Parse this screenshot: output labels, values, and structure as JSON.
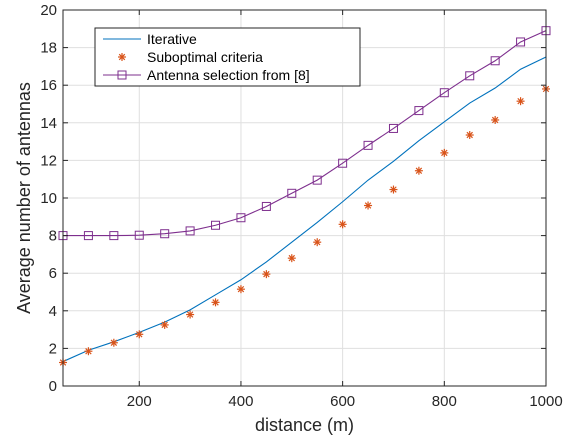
{
  "chart_data": {
    "type": "line",
    "xlabel": "distance (m)",
    "ylabel": "Average number of antennas",
    "xlim": [
      50,
      1000
    ],
    "ylim": [
      0,
      20
    ],
    "xticks": [
      200,
      400,
      600,
      800,
      1000
    ],
    "yticks": [
      0,
      2,
      4,
      6,
      8,
      10,
      12,
      14,
      16,
      18,
      20
    ],
    "grid": true,
    "legend_position": "top-left",
    "x": [
      50,
      100,
      150,
      200,
      250,
      300,
      350,
      400,
      450,
      500,
      550,
      600,
      650,
      700,
      750,
      800,
      850,
      900,
      950,
      1000
    ],
    "series": [
      {
        "name": "Iterative",
        "style": "line",
        "color": "#0072BD",
        "values": [
          1.3,
          1.9,
          2.35,
          2.85,
          3.4,
          4.05,
          4.85,
          5.65,
          6.6,
          7.65,
          8.7,
          9.8,
          10.95,
          11.95,
          13.05,
          14.05,
          15.05,
          15.85,
          16.85,
          17.5
        ]
      },
      {
        "name": "Suboptimal criteria",
        "style": "asterisk",
        "color": "#D95319",
        "values": [
          1.25,
          1.85,
          2.3,
          2.75,
          3.25,
          3.8,
          4.45,
          5.15,
          5.95,
          6.8,
          7.65,
          8.6,
          9.6,
          10.45,
          11.45,
          12.4,
          13.35,
          14.15,
          15.15,
          15.8
        ]
      },
      {
        "name": "Antenna selection from [8]",
        "style": "line-square",
        "color": "#7E2F8E",
        "values": [
          8.0,
          8.0,
          8.0,
          8.02,
          8.1,
          8.25,
          8.55,
          8.95,
          9.55,
          10.25,
          10.95,
          11.85,
          12.8,
          13.7,
          14.65,
          15.6,
          16.5,
          17.3,
          18.3,
          18.9
        ]
      }
    ]
  }
}
